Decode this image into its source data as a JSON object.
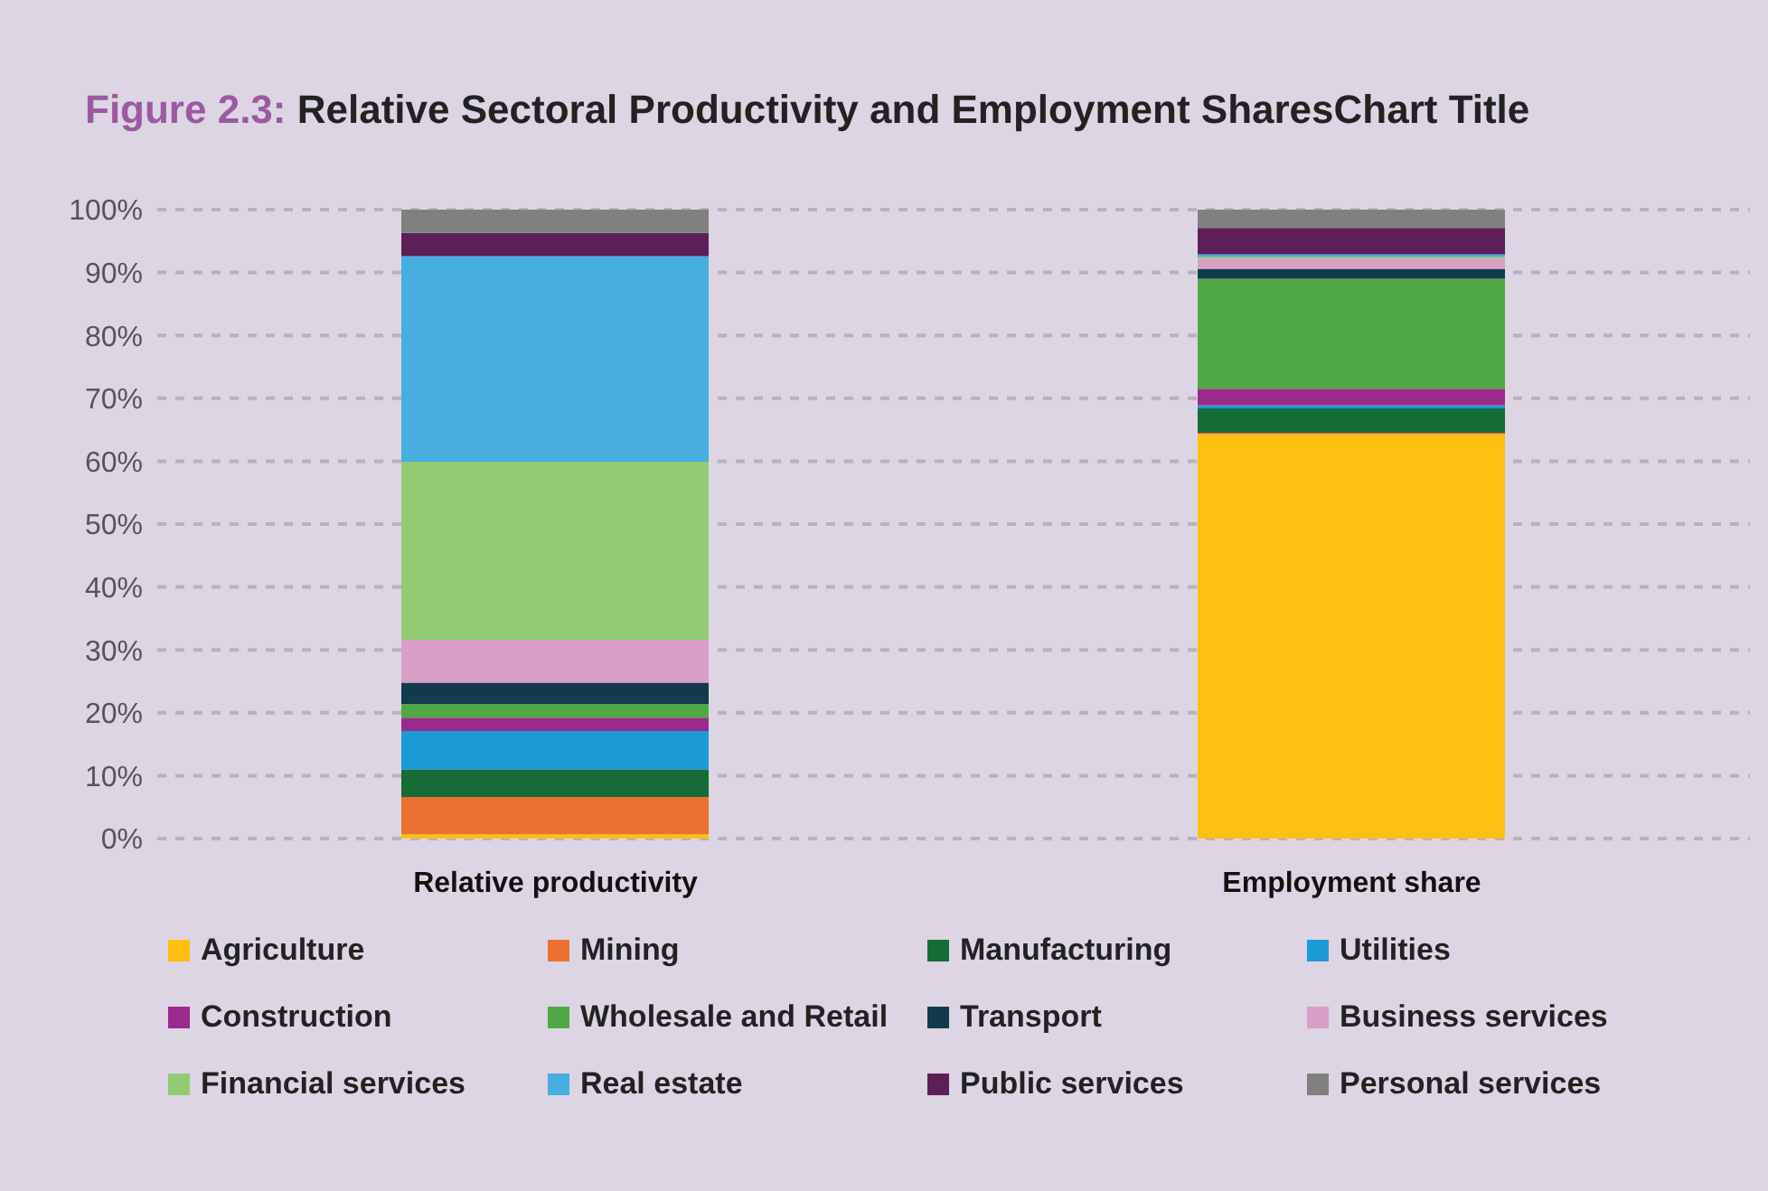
{
  "chart_data": {
    "type": "bar",
    "title": "Figure 2.3: Relative Sectoral Productivity and Employment SharesChart Title",
    "categories": [
      "Relative productivity",
      "Employment share"
    ],
    "stacked": true,
    "grid": "y",
    "legend": "bottom",
    "ylim": [
      0,
      100
    ],
    "yticks": [
      {
        "value": 0,
        "label": "0%"
      },
      {
        "value": 10,
        "label": "10%"
      },
      {
        "value": 20,
        "label": "20%"
      },
      {
        "value": 30,
        "label": "30%"
      },
      {
        "value": 40,
        "label": "40%"
      },
      {
        "value": 50,
        "label": "50%"
      },
      {
        "value": 60,
        "label": "60%"
      },
      {
        "value": 70,
        "label": "70%"
      },
      {
        "value": 80,
        "label": "80%"
      },
      {
        "value": 90,
        "label": "90%"
      },
      {
        "value": 100,
        "label": "100%"
      }
    ],
    "series": [
      {
        "name": "Agriculture",
        "color": "#fcc010",
        "values": [
          0.7,
          64.3
        ]
      },
      {
        "name": "Mining",
        "color": "#ea7130",
        "values": [
          5.9,
          0.2
        ]
      },
      {
        "name": "Manufacturing",
        "color": "#166b37",
        "values": [
          4.4,
          3.9
        ]
      },
      {
        "name": "Utilities",
        "color": "#1a9bd6",
        "values": [
          6.1,
          0.5
        ]
      },
      {
        "name": "Construction",
        "color": "#9b2a8e",
        "values": [
          2.1,
          2.6
        ]
      },
      {
        "name": "Wholesale and Retail",
        "color": "#4fa845",
        "values": [
          2.2,
          17.5
        ]
      },
      {
        "name": "Transport",
        "color": "#123a4e",
        "values": [
          3.4,
          1.6
        ]
      },
      {
        "name": "Business services",
        "color": "#d8a0c6",
        "values": [
          6.8,
          1.6
        ]
      },
      {
        "name": "Financial services",
        "color": "#93cb75",
        "values": [
          28.3,
          0.3
        ]
      },
      {
        "name": "Real estate",
        "color": "#46afdf",
        "values": [
          32.7,
          0.4
        ]
      },
      {
        "name": "Public services",
        "color": "#5e1e58",
        "values": [
          3.7,
          4.2
        ]
      },
      {
        "name": "Personal services",
        "color": "#808080",
        "values": [
          3.7,
          2.9
        ]
      }
    ]
  }
}
